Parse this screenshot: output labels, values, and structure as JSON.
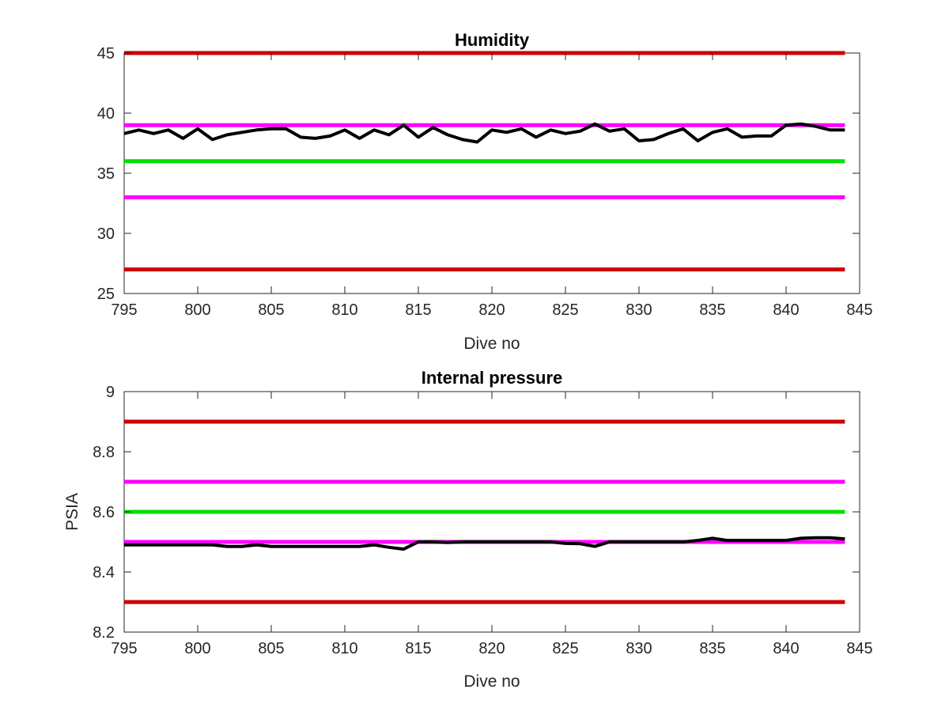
{
  "colors": {
    "limit_red": "#cc0000",
    "warn_magenta": "#ff00ff",
    "target_green": "#00e000",
    "measured_black": "#000000",
    "axis": "#262626"
  },
  "chart_data": [
    {
      "type": "line",
      "title": "Humidity",
      "xlabel": "Dive no",
      "ylabel": "",
      "xlim": [
        795,
        845
      ],
      "ylim": [
        25,
        45
      ],
      "xticks": [
        "795",
        "800",
        "805",
        "810",
        "815",
        "820",
        "825",
        "830",
        "835",
        "840",
        "845"
      ],
      "yticks": [
        "25",
        "30",
        "35",
        "40",
        "45"
      ],
      "grid": false,
      "reference_lines": [
        {
          "y": 45,
          "color": "#cc0000"
        },
        {
          "y": 39,
          "color": "#ff00ff"
        },
        {
          "y": 36,
          "color": "#00e000"
        },
        {
          "y": 33,
          "color": "#ff00ff"
        },
        {
          "y": 27,
          "color": "#cc0000"
        }
      ],
      "series": [
        {
          "color": "#000000",
          "x": [
            795,
            796,
            797,
            798,
            799,
            800,
            801,
            802,
            803,
            804,
            805,
            806,
            807,
            808,
            809,
            810,
            811,
            812,
            813,
            814,
            815,
            816,
            817,
            818,
            819,
            820,
            821,
            822,
            823,
            824,
            825,
            826,
            827,
            828,
            829,
            830,
            831,
            832,
            833,
            834,
            835,
            836,
            837,
            838,
            839,
            840,
            841,
            842,
            843,
            844
          ],
          "y": [
            38.3,
            38.6,
            38.3,
            38.6,
            37.9,
            38.7,
            37.8,
            38.2,
            38.4,
            38.6,
            38.7,
            38.7,
            38.0,
            37.9,
            38.1,
            38.6,
            37.9,
            38.6,
            38.2,
            39.0,
            38.0,
            38.8,
            38.2,
            37.8,
            37.6,
            38.6,
            38.4,
            38.7,
            38.0,
            38.6,
            38.3,
            38.5,
            39.1,
            38.5,
            38.7,
            37.7,
            37.8,
            38.3,
            38.7,
            37.7,
            38.4,
            38.7,
            38.0,
            38.1,
            38.1,
            39.0,
            39.1,
            38.9,
            38.6,
            38.6
          ]
        }
      ]
    },
    {
      "type": "line",
      "title": "Internal pressure",
      "xlabel": "Dive no",
      "ylabel": "PSIA",
      "xlim": [
        795,
        845
      ],
      "ylim": [
        8.2,
        9
      ],
      "xticks": [
        "795",
        "800",
        "805",
        "810",
        "815",
        "820",
        "825",
        "830",
        "835",
        "840",
        "845"
      ],
      "yticks": [
        "8.2",
        "8.4",
        "8.6",
        "8.8",
        "9"
      ],
      "grid": false,
      "reference_lines": [
        {
          "y": 8.9,
          "color": "#cc0000"
        },
        {
          "y": 8.7,
          "color": "#ff00ff"
        },
        {
          "y": 8.6,
          "color": "#00e000"
        },
        {
          "y": 8.5,
          "color": "#ff00ff"
        },
        {
          "y": 8.3,
          "color": "#cc0000"
        }
      ],
      "series": [
        {
          "color": "#000000",
          "x": [
            795,
            796,
            797,
            798,
            799,
            800,
            801,
            802,
            803,
            804,
            805,
            806,
            807,
            808,
            809,
            810,
            811,
            812,
            813,
            814,
            815,
            816,
            817,
            818,
            819,
            820,
            821,
            822,
            823,
            824,
            825,
            826,
            827,
            828,
            829,
            830,
            831,
            832,
            833,
            834,
            835,
            836,
            837,
            838,
            839,
            840,
            841,
            842,
            843,
            844
          ],
          "y": [
            8.49,
            8.49,
            8.49,
            8.49,
            8.49,
            8.49,
            8.49,
            8.485,
            8.485,
            8.49,
            8.485,
            8.485,
            8.485,
            8.485,
            8.485,
            8.485,
            8.485,
            8.49,
            8.482,
            8.476,
            8.5,
            8.5,
            8.498,
            8.5,
            8.5,
            8.5,
            8.5,
            8.5,
            8.5,
            8.5,
            8.495,
            8.494,
            8.485,
            8.5,
            8.5,
            8.5,
            8.5,
            8.5,
            8.5,
            8.505,
            8.512,
            8.505,
            8.505,
            8.505,
            8.505,
            8.505,
            8.512,
            8.514,
            8.514,
            8.51
          ]
        }
      ]
    }
  ]
}
